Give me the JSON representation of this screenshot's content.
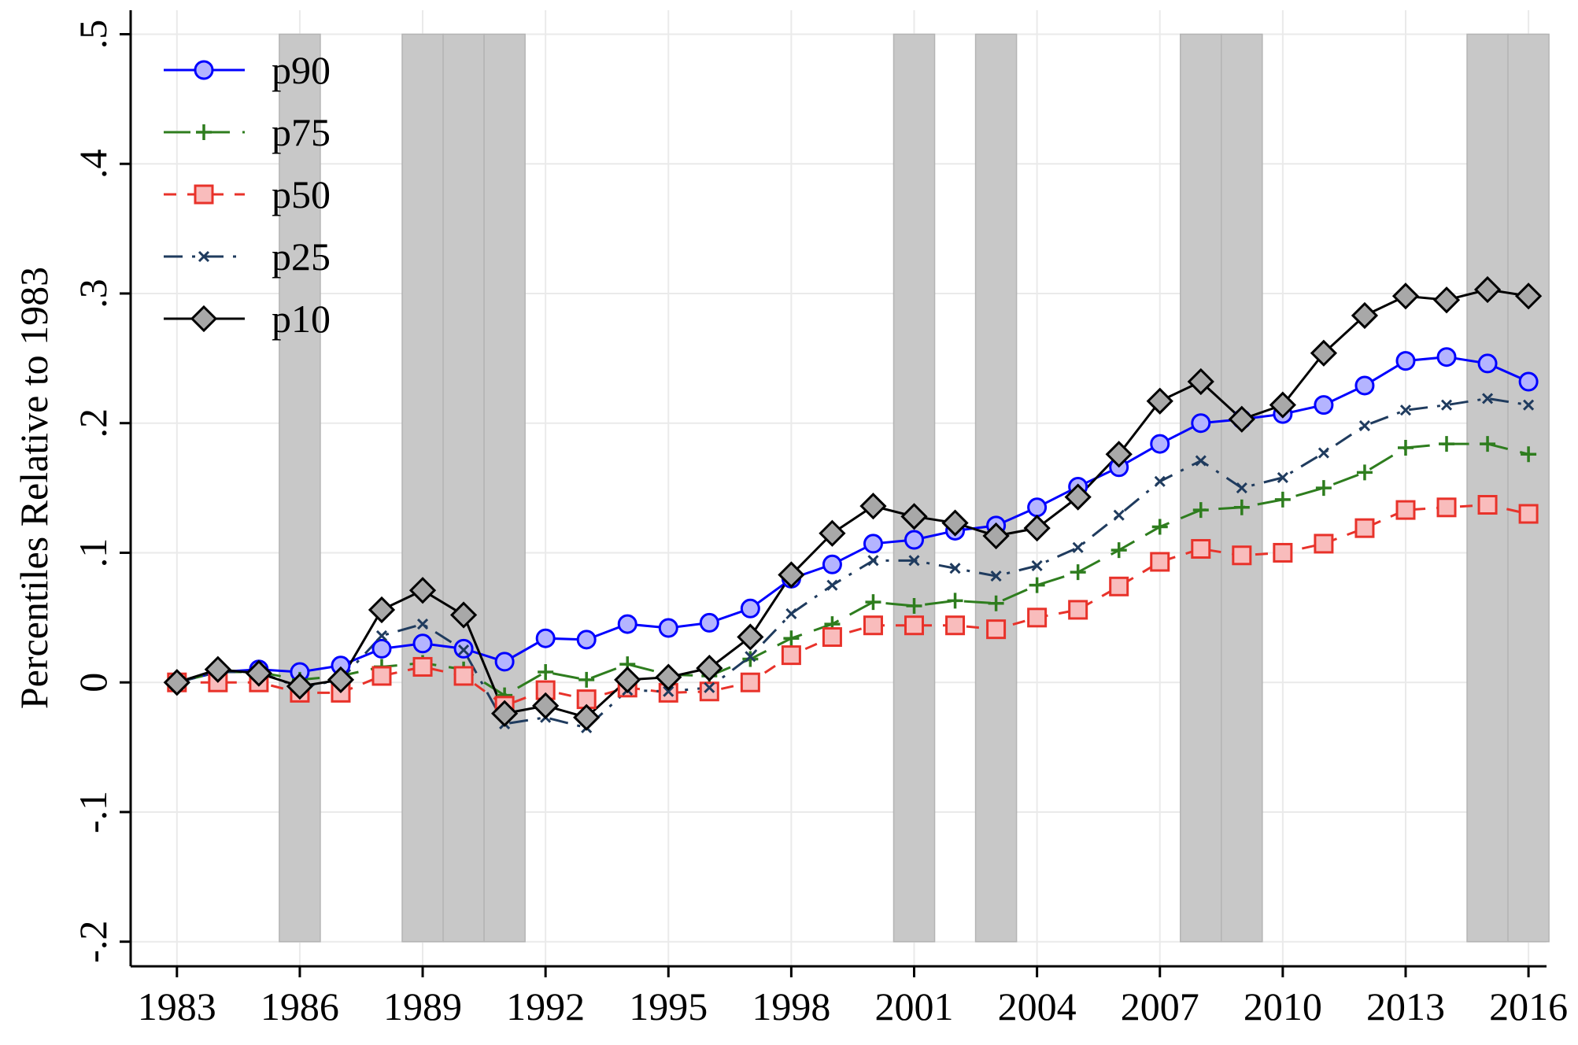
{
  "chart_data": {
    "type": "line",
    "ylabel": "Percentiles Relative to 1983",
    "x": [
      1983,
      1984,
      1985,
      1986,
      1987,
      1988,
      1989,
      1990,
      1991,
      1992,
      1993,
      1994,
      1995,
      1996,
      1997,
      1998,
      1999,
      2000,
      2001,
      2002,
      2003,
      2004,
      2005,
      2006,
      2007,
      2008,
      2009,
      2010,
      2011,
      2012,
      2013,
      2014,
      2015,
      2016
    ],
    "series": [
      {
        "name": "p90",
        "color": "#0000ff",
        "fill": "#b4b4ff",
        "marker": "circle",
        "dash": "solid",
        "values": [
          0,
          0.008,
          0.01,
          0.008,
          0.013,
          0.026,
          0.03,
          0.026,
          0.016,
          0.034,
          0.033,
          0.045,
          0.042,
          0.046,
          0.057,
          0.08,
          0.091,
          0.107,
          0.11,
          0.117,
          0.121,
          0.135,
          0.151,
          0.166,
          0.184,
          0.2,
          0.203,
          0.207,
          0.214,
          0.229,
          0.248,
          0.251,
          0.246,
          0.232
        ]
      },
      {
        "name": "p75",
        "color": "#2e7d1e",
        "fill": "#2e7d1e",
        "marker": "plus",
        "dash": "longdash",
        "values": [
          0,
          0.008,
          0.008,
          0.002,
          0.005,
          0.012,
          0.015,
          0.01,
          -0.01,
          0.008,
          0.002,
          0.014,
          0.006,
          0.005,
          0.018,
          0.034,
          0.045,
          0.062,
          0.059,
          0.063,
          0.061,
          0.075,
          0.085,
          0.102,
          0.12,
          0.133,
          0.135,
          0.141,
          0.15,
          0.162,
          0.181,
          0.184,
          0.184,
          0.176
        ]
      },
      {
        "name": "p50",
        "color": "#e8322a",
        "fill": "#f9bcbc",
        "marker": "square",
        "dash": "shortdash",
        "values": [
          0,
          0,
          0,
          -0.008,
          -0.008,
          0.005,
          0.012,
          0.005,
          -0.018,
          -0.006,
          -0.013,
          -0.004,
          -0.008,
          -0.007,
          0,
          0.021,
          0.035,
          0.044,
          0.044,
          0.044,
          0.041,
          0.05,
          0.056,
          0.074,
          0.093,
          0.103,
          0.098,
          0.1,
          0.107,
          0.119,
          0.133,
          0.135,
          0.137,
          0.13
        ]
      },
      {
        "name": "p25",
        "color": "#1f3b5e",
        "fill": "#1f3b5e",
        "marker": "x",
        "dash": "dashdot",
        "values": [
          0,
          0.008,
          0.008,
          -0.004,
          0.002,
          0.036,
          0.045,
          0.025,
          -0.032,
          -0.027,
          -0.035,
          -0.006,
          -0.007,
          -0.004,
          0.02,
          0.053,
          0.075,
          0.094,
          0.094,
          0.088,
          0.082,
          0.09,
          0.104,
          0.129,
          0.155,
          0.171,
          0.15,
          0.158,
          0.177,
          0.198,
          0.21,
          0.214,
          0.219,
          0.214
        ]
      },
      {
        "name": "p10",
        "color": "#000000",
        "fill": "#a8a8a8",
        "marker": "diamond",
        "dash": "solid",
        "values": [
          0,
          0.01,
          0.007,
          -0.003,
          0.002,
          0.056,
          0.071,
          0.052,
          -0.024,
          -0.018,
          -0.027,
          0.002,
          0.004,
          0.011,
          0.035,
          0.083,
          0.115,
          0.136,
          0.128,
          0.123,
          0.113,
          0.119,
          0.143,
          0.176,
          0.217,
          0.232,
          0.203,
          0.214,
          0.254,
          0.283,
          0.298,
          0.295,
          0.303,
          0.298
        ]
      }
    ],
    "bands": [
      [
        1985.5,
        1986.5
      ],
      [
        1988.5,
        1989.5
      ],
      [
        1989.5,
        1990.5
      ],
      [
        1990.5,
        1991.5
      ],
      [
        2000.5,
        2001.5
      ],
      [
        2002.5,
        2003.5
      ],
      [
        2007.5,
        2008.5
      ],
      [
        2008.5,
        2009.5
      ],
      [
        2014.5,
        2015.5
      ],
      [
        2015.5,
        2016.5
      ]
    ],
    "band_color": "#c8c8c8",
    "band_range": [
      -0.2,
      0.5
    ],
    "xlim": [
      1981.87,
      2016.44
    ],
    "xticks": [
      1983,
      1986,
      1989,
      1992,
      1995,
      1998,
      2001,
      2004,
      2007,
      2010,
      2013,
      2016
    ],
    "ylim": [
      -0.219,
      0.5185
    ],
    "yticks": [
      {
        "value": -0.2,
        "label": "-.2"
      },
      {
        "value": -0.1,
        "label": "-.1"
      },
      0,
      {
        "value": 0.1,
        "label": ".1"
      },
      {
        "value": 0.2,
        "label": ".2"
      },
      {
        "value": 0.3,
        "label": ".3"
      },
      {
        "value": 0.4,
        "label": ".4"
      },
      {
        "value": 0.5,
        "label": ".5"
      }
    ],
    "grid": true,
    "legend": "top-left"
  }
}
